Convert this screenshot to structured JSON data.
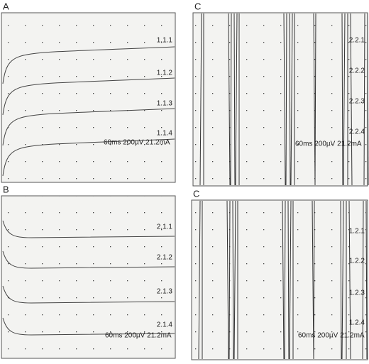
{
  "panels": [
    {
      "label": "A",
      "traces": [
        "1.1.1",
        "1.1.2",
        "1.1.3",
        "1.1.4"
      ],
      "settings": "60ms 200µV 21.2mA"
    },
    {
      "label": "C",
      "traces": [
        "2.2.1",
        "2.2.2",
        "2.2.3",
        "2.2.4"
      ],
      "settings": "60ms 200µV 21.2mA"
    },
    {
      "label": "B",
      "traces": [
        "2.1.1",
        "2.1.2",
        "2.1.3",
        "2.1.4"
      ],
      "settings": "60ms 200µV 21.2mA"
    },
    {
      "label": "C",
      "traces": [
        "1.2.1",
        "1.2.2",
        "1.2.3",
        "1.2.4"
      ],
      "settings": "60ms 200µV 21.2mA"
    }
  ]
}
